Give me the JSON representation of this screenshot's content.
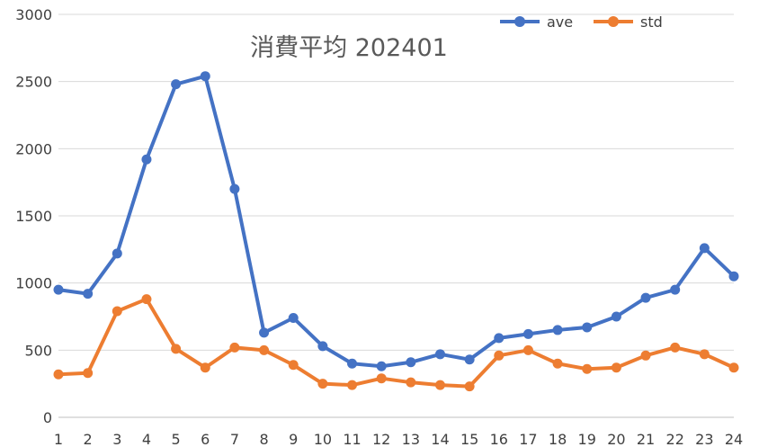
{
  "chart_data": {
    "type": "line",
    "title": "消費平均 202401",
    "xlabel": "",
    "ylabel": "",
    "categories": [
      "1",
      "2",
      "3",
      "4",
      "5",
      "6",
      "7",
      "8",
      "9",
      "10",
      "11",
      "12",
      "13",
      "14",
      "15",
      "16",
      "17",
      "18",
      "19",
      "20",
      "21",
      "22",
      "23",
      "24"
    ],
    "ylim": [
      0,
      3000
    ],
    "yticks": [
      "0",
      "500",
      "1000",
      "1500",
      "2000",
      "2500",
      "3000"
    ],
    "grid": true,
    "legend_position": "top-right",
    "series": [
      {
        "name": "ave",
        "color": "#4472c4",
        "values": [
          950,
          920,
          1220,
          1920,
          2480,
          2540,
          1700,
          630,
          740,
          530,
          400,
          380,
          410,
          470,
          430,
          590,
          620,
          650,
          670,
          750,
          890,
          950,
          1260,
          1050
        ]
      },
      {
        "name": "std",
        "color": "#ed7d31",
        "values": [
          320,
          330,
          790,
          880,
          510,
          370,
          520,
          500,
          390,
          250,
          240,
          290,
          260,
          240,
          230,
          460,
          500,
          400,
          360,
          370,
          460,
          520,
          470,
          370
        ]
      }
    ]
  }
}
